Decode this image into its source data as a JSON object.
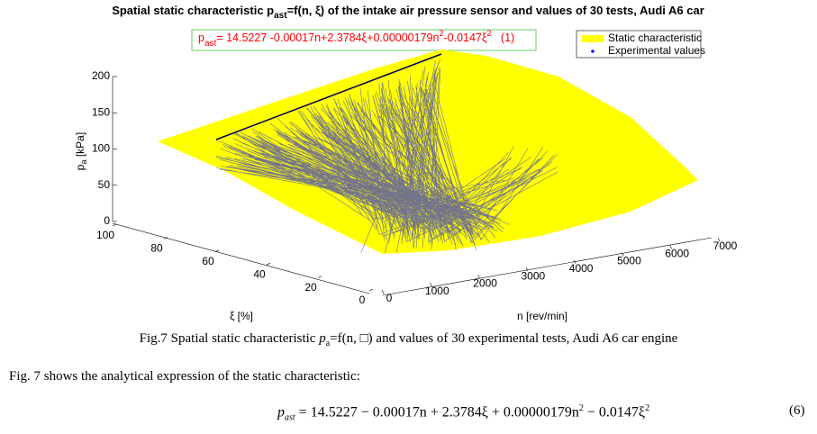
{
  "figure": {
    "title": [
      "Spatial static characteristic p",
      "ast",
      "=f(n, ξ) of the intake air pressure sensor and values of 30 tests, Audi A6 car"
    ],
    "equation": [
      "p",
      "ast",
      "= 14.5227 -0.00017n+2.3784ξ+0.00000179n",
      "2",
      "-0.0147ξ",
      "2",
      "   (1)"
    ],
    "legend": [
      {
        "name": "Static characteristic",
        "color": "#ffff00"
      },
      {
        "name": "Experimental values",
        "color": "#0000ff"
      }
    ],
    "zlabel": [
      "p",
      "a",
      " [kPa]"
    ],
    "zlim": [
      0,
      200
    ],
    "zticks": [
      0,
      50,
      100,
      150,
      200
    ],
    "xilabel": "ξ [%]",
    "xilim": [
      0,
      100
    ],
    "xiticks": [
      0,
      20,
      40,
      60,
      80,
      100
    ],
    "nlabel": "n [rev/min]",
    "nlim": [
      0,
      7000
    ],
    "nticks": [
      0,
      1000,
      2000,
      3000,
      4000,
      5000,
      6000,
      7000
    ]
  },
  "caption": [
    "Fig.7 Spatial static characteristic ",
    "p",
    "a",
    "=f(n, □) and values of 30 experimental tests, Audi A6 car engine"
  ],
  "paragraph": "Fig. 7 shows the analytical expression of the static characteristic:",
  "equation": [
    "p",
    "ast",
    " = 14.5227 − 0.00017n + 2.3784ξ + 0.00000179n",
    "2",
    " − 0.0147ξ",
    "2"
  ],
  "equation_number": "(6)"
}
